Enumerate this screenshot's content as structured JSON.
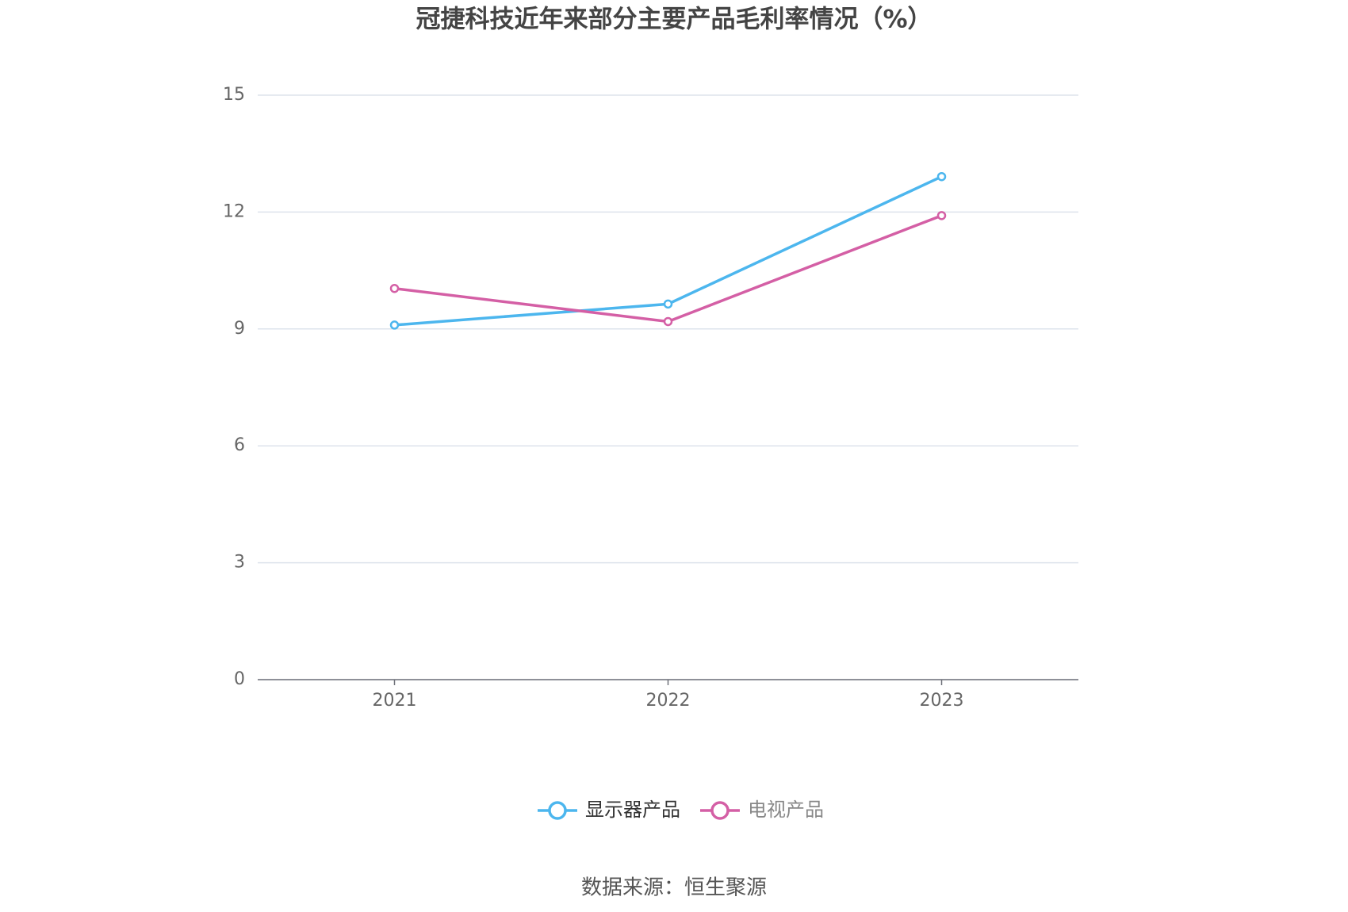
{
  "chart_data": {
    "type": "line",
    "title": "冠捷科技近年来部分主要产品毛利率情况（%）",
    "categories": [
      "2021",
      "2022",
      "2023"
    ],
    "series": [
      {
        "name": "显示器产品",
        "color": "#4cb6ee",
        "values": [
          9.1,
          9.64,
          12.91
        ]
      },
      {
        "name": "电视产品",
        "color": "#d45fa5",
        "values": [
          10.04,
          9.19,
          11.91
        ]
      }
    ],
    "ylim": [
      0,
      15
    ],
    "yticks": [
      0,
      3,
      6,
      9,
      12,
      15
    ],
    "grid": true,
    "legend": "bottom",
    "source": "数据来源：恒生聚源"
  }
}
